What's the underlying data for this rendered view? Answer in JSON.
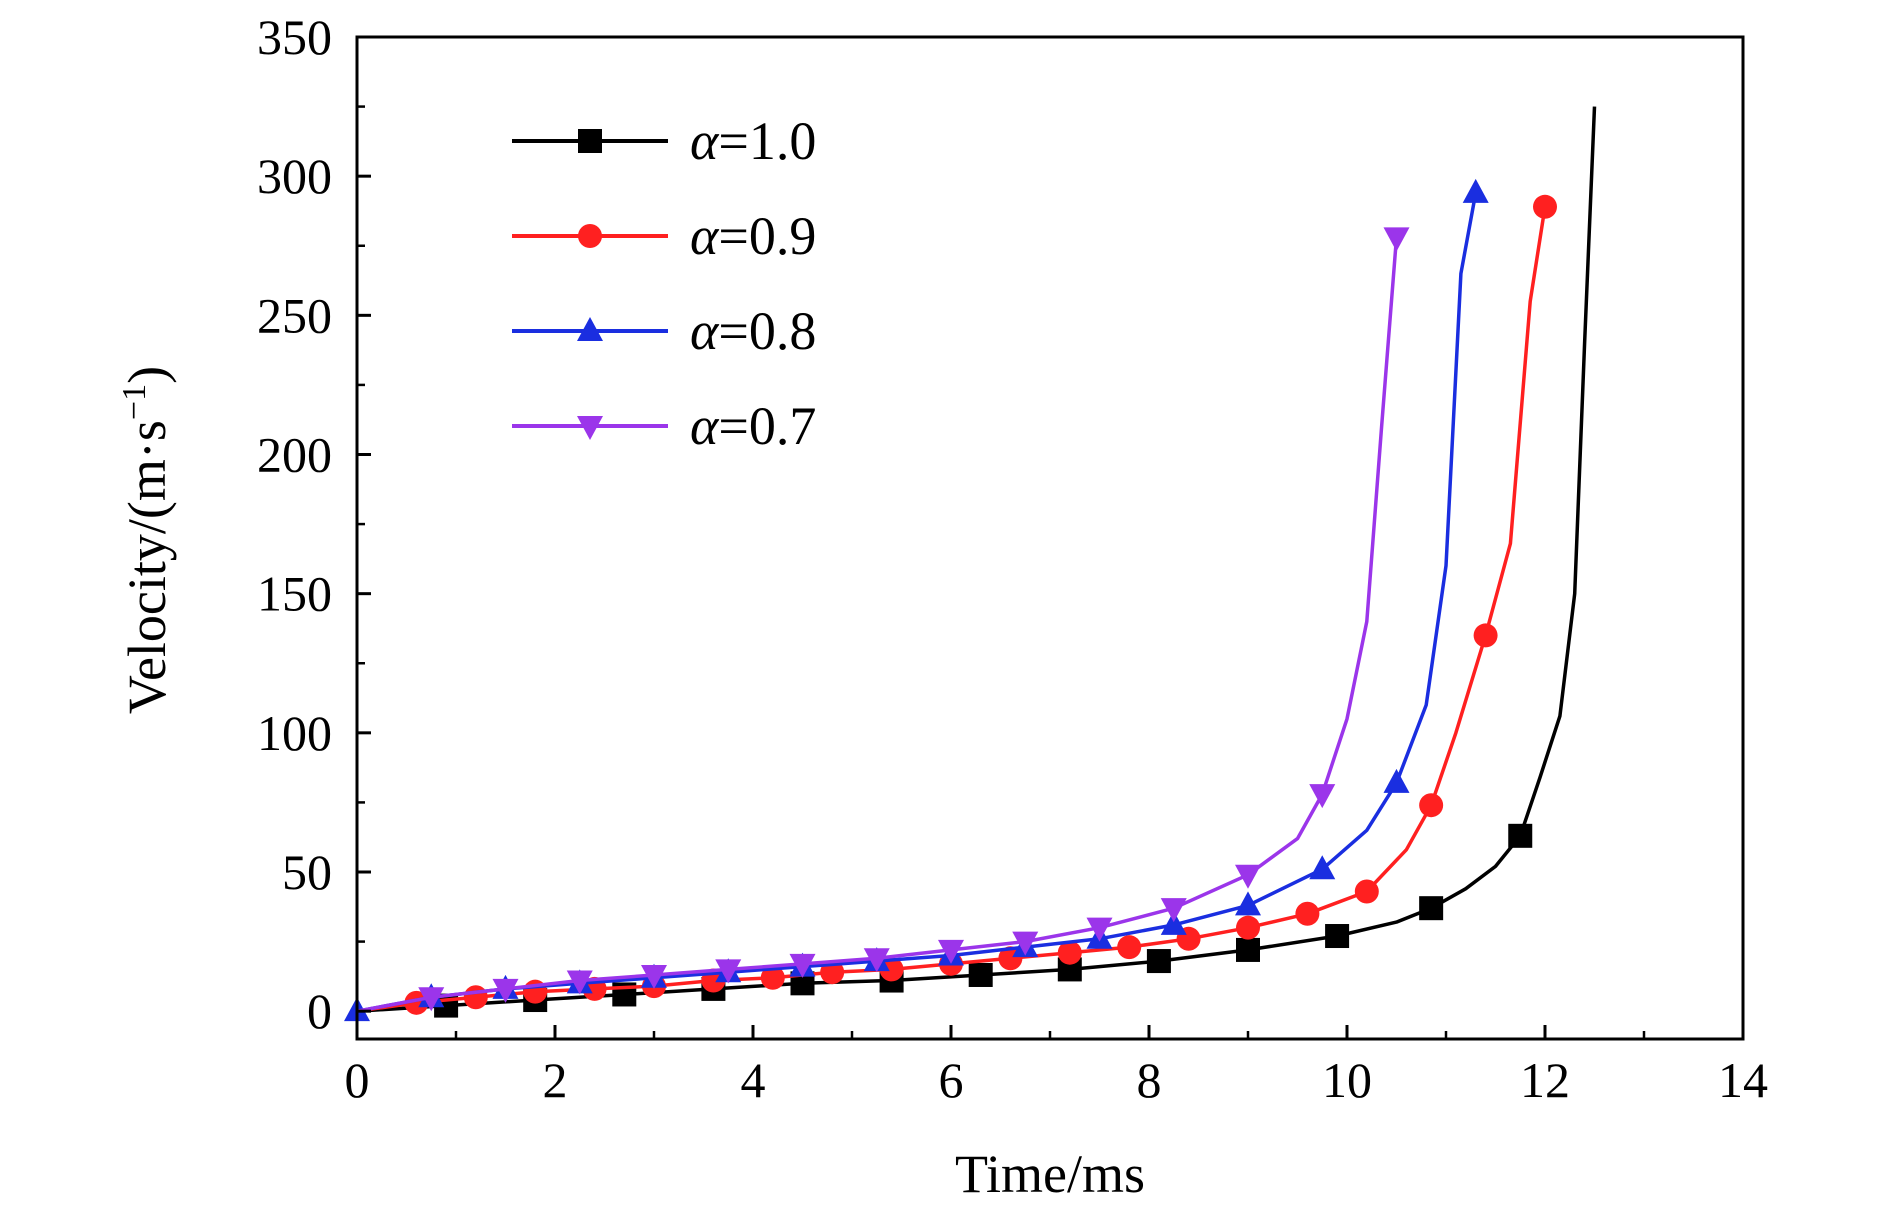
{
  "chart_data": {
    "type": "line",
    "title": "",
    "xlabel": "Time/ms",
    "ylabel": "Velocity/(m·s",
    "ylabel_sup": "−1",
    "ylabel_close": ")",
    "xlim": [
      0,
      14
    ],
    "ylim": [
      -10,
      350
    ],
    "xticks": [
      0,
      2,
      4,
      6,
      8,
      10,
      12,
      14
    ],
    "yticks": [
      0,
      50,
      100,
      150,
      200,
      250,
      300,
      350
    ],
    "xtick_labels": [
      "0",
      "2",
      "4",
      "6",
      "8",
      "10",
      "12",
      "14"
    ],
    "ytick_labels": [
      "0",
      "50",
      "100",
      "150",
      "200",
      "250",
      "300",
      "350"
    ],
    "grid": false,
    "legend_position": "top-left",
    "series": [
      {
        "name": "α=1.0",
        "greek": "α",
        "value_text": "=1.0",
        "color": "#000000",
        "marker": "square",
        "x": [
          0,
          0.9,
          1.8,
          2.7,
          3.6,
          4.5,
          5.4,
          6.3,
          7.2,
          8.1,
          9.0,
          9.9,
          10.5,
          10.85,
          11.2,
          11.5,
          11.75,
          11.95,
          12.15,
          12.3,
          12.4,
          12.5
        ],
        "y": [
          0,
          2,
          4,
          6,
          8,
          10,
          11,
          13,
          15,
          18,
          22,
          27,
          32,
          37,
          44,
          52,
          63,
          84,
          106,
          150,
          240,
          325
        ],
        "marker_x": [
          0.9,
          1.8,
          2.7,
          3.6,
          4.5,
          5.4,
          6.3,
          7.2,
          8.1,
          9.0,
          9.9,
          10.85,
          11.75
        ],
        "marker_y": [
          2,
          4,
          6,
          8,
          10,
          11,
          13,
          15,
          18,
          22,
          27,
          37,
          63
        ]
      },
      {
        "name": "α=0.9",
        "greek": "α",
        "value_text": "=0.9",
        "color": "#ff2020",
        "marker": "circle",
        "x": [
          0,
          0.6,
          1.2,
          1.8,
          2.4,
          3.0,
          3.6,
          4.2,
          4.8,
          5.4,
          6.0,
          6.6,
          7.2,
          7.8,
          8.4,
          9.0,
          9.6,
          10.2,
          10.6,
          10.85,
          11.1,
          11.4,
          11.65,
          11.85,
          12.0
        ],
        "y": [
          0,
          3,
          5,
          7,
          8,
          9,
          11,
          12,
          14,
          15,
          17,
          19,
          21,
          23,
          26,
          30,
          35,
          43,
          58,
          74,
          100,
          135,
          168,
          255,
          289
        ],
        "marker_x": [
          0.6,
          1.2,
          1.8,
          2.4,
          3.0,
          3.6,
          4.2,
          4.8,
          5.4,
          6.0,
          6.6,
          7.2,
          7.8,
          8.4,
          9.0,
          9.6,
          10.2,
          10.85,
          11.4,
          12.0
        ],
        "marker_y": [
          3,
          5,
          7,
          8,
          9,
          11,
          12,
          14,
          15,
          17,
          19,
          21,
          23,
          26,
          30,
          35,
          43,
          74,
          135,
          289
        ]
      },
      {
        "name": "α=0.8",
        "greek": "α",
        "value_text": "=0.8",
        "color": "#1a2ee0",
        "marker": "triangle-up",
        "x": [
          0,
          0.75,
          1.5,
          2.25,
          3.0,
          3.75,
          4.5,
          5.25,
          6.0,
          6.75,
          7.5,
          8.25,
          9.0,
          9.75,
          10.2,
          10.5,
          10.8,
          11.0,
          11.15,
          11.3
        ],
        "y": [
          0,
          5,
          8,
          10,
          12,
          14,
          16,
          18,
          20,
          23,
          26,
          31,
          38,
          51,
          65,
          82,
          110,
          160,
          265,
          294
        ],
        "marker_x": [
          0,
          0.75,
          1.5,
          2.25,
          3.0,
          3.75,
          4.5,
          5.25,
          6.0,
          6.75,
          7.5,
          8.25,
          9.0,
          9.75,
          10.5,
          11.3
        ],
        "marker_y": [
          0,
          5,
          8,
          10,
          12,
          14,
          16,
          18,
          20,
          23,
          26,
          31,
          38,
          51,
          82,
          294
        ]
      },
      {
        "name": "α=0.7",
        "greek": "α",
        "value_text": "=0.7",
        "color": "#9b35ea",
        "marker": "triangle-down",
        "x": [
          0,
          0.75,
          1.5,
          2.25,
          3.0,
          3.75,
          4.5,
          5.25,
          6.0,
          6.75,
          7.5,
          8.25,
          9.0,
          9.5,
          9.75,
          10.0,
          10.2,
          10.35,
          10.5
        ],
        "y": [
          0,
          5,
          8,
          11,
          13,
          15,
          17,
          19,
          22,
          25,
          30,
          37,
          49,
          62,
          78,
          105,
          140,
          210,
          278
        ],
        "marker_x": [
          0.75,
          1.5,
          2.25,
          3.0,
          3.75,
          4.5,
          5.25,
          6.0,
          6.75,
          7.5,
          8.25,
          9.0,
          9.75,
          10.5
        ],
        "marker_y": [
          5,
          8,
          11,
          13,
          15,
          17,
          19,
          22,
          25,
          30,
          37,
          49,
          78,
          278
        ]
      }
    ]
  }
}
